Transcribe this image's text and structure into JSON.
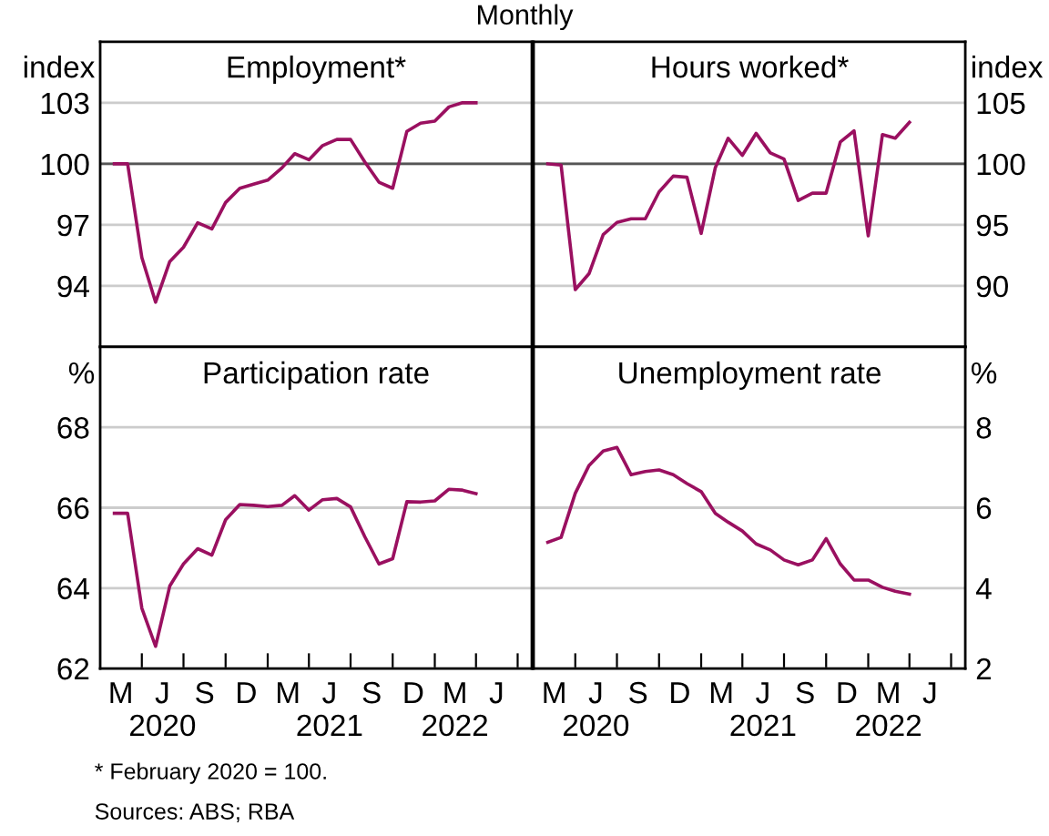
{
  "chart_data": [
    {
      "type": "line",
      "title": "Employment*",
      "subtitle": "Monthly",
      "ylabel": "index",
      "annotations": [
        "* February 2020 = 100.",
        "Sources: ABS; RBA"
      ],
      "x": [
        "2020-02",
        "2020-03",
        "2020-04",
        "2020-05",
        "2020-06",
        "2020-07",
        "2020-08",
        "2020-09",
        "2020-10",
        "2020-11",
        "2020-12",
        "2021-01",
        "2021-02",
        "2021-03",
        "2021-04",
        "2021-05",
        "2021-06",
        "2021-07",
        "2021-08",
        "2021-09",
        "2021-10",
        "2021-11",
        "2021-12",
        "2022-01",
        "2022-02",
        "2022-03",
        "2022-04"
      ],
      "series": [
        {
          "color": "#9a1060",
          "values": [
            100,
            100,
            95.4,
            93.2,
            95.2,
            95.9,
            97.1,
            96.8,
            98.1,
            98.8,
            99.0,
            99.2,
            99.8,
            100.5,
            100.2,
            100.9,
            101.2,
            101.2,
            100.1,
            99.1,
            98.8,
            101.6,
            102.0,
            102.1,
            102.8,
            103.0,
            103.0
          ]
        }
      ],
      "xlim": [
        "2020-01-01",
        "2022-08-01"
      ],
      "ylim": [
        91,
        106
      ],
      "yticks": [
        94,
        97,
        100,
        103
      ],
      "grid": "y",
      "tick_labels": "y",
      "ref_lines": [
        {
          "axis": "y",
          "value": 100,
          "color": "#555555"
        }
      ]
    },
    {
      "type": "line",
      "title": "Hours worked*",
      "ylabel": "index",
      "x": [
        "2020-02",
        "2020-03",
        "2020-04",
        "2020-05",
        "2020-06",
        "2020-07",
        "2020-08",
        "2020-09",
        "2020-10",
        "2020-11",
        "2020-12",
        "2021-01",
        "2021-02",
        "2021-03",
        "2021-04",
        "2021-05",
        "2021-06",
        "2021-07",
        "2021-08",
        "2021-09",
        "2021-10",
        "2021-11",
        "2021-12",
        "2022-01",
        "2022-02",
        "2022-03",
        "2022-04"
      ],
      "series": [
        {
          "color": "#9a1060",
          "values": [
            100,
            99.9,
            89.7,
            91.0,
            94.2,
            95.2,
            95.5,
            95.5,
            97.7,
            99.0,
            98.9,
            94.3,
            99.7,
            102.1,
            100.7,
            102.5,
            100.9,
            100.4,
            97.0,
            97.6,
            97.6,
            101.8,
            102.7,
            94.1,
            102.4,
            102.1,
            103.4
          ]
        }
      ],
      "xlim": [
        "2020-01-01",
        "2022-08-01"
      ],
      "ylim": [
        85,
        110
      ],
      "yticks": [
        90,
        95,
        100,
        105
      ],
      "grid": "y",
      "tick_labels": "y",
      "ref_lines": [
        {
          "axis": "y",
          "value": 100,
          "color": "#555555"
        }
      ]
    },
    {
      "type": "line",
      "title": "Participation rate",
      "ylabel": "%",
      "x": [
        "2020-02",
        "2020-03",
        "2020-04",
        "2020-05",
        "2020-06",
        "2020-07",
        "2020-08",
        "2020-09",
        "2020-10",
        "2020-11",
        "2020-12",
        "2021-01",
        "2021-02",
        "2021-03",
        "2021-04",
        "2021-05",
        "2021-06",
        "2021-07",
        "2021-08",
        "2021-09",
        "2021-10",
        "2021-11",
        "2021-12",
        "2022-01",
        "2022-02",
        "2022-03",
        "2022-04"
      ],
      "series": [
        {
          "color": "#9a1060",
          "values": [
            65.86,
            65.86,
            63.5,
            62.55,
            64.05,
            64.6,
            64.98,
            64.82,
            65.7,
            66.08,
            66.06,
            66.03,
            66.06,
            66.3,
            65.94,
            66.2,
            66.23,
            66.02,
            65.28,
            64.6,
            64.73,
            66.15,
            66.14,
            66.17,
            66.46,
            66.44,
            66.35
          ]
        }
      ],
      "xlim": [
        "2020-01-01",
        "2022-08-01"
      ],
      "ylim": [
        62,
        70
      ],
      "yticks": [
        62,
        64,
        66,
        68
      ],
      "grid": "y",
      "xticks": [
        {
          "value": "2020-04-01",
          "label": null
        },
        {
          "value": "2020-07-01",
          "label": null
        },
        {
          "value": "2020-10-01",
          "label": null
        },
        {
          "value": "2021-01-01",
          "label": null
        },
        {
          "value": "2021-04-01",
          "label": null
        },
        {
          "value": "2021-07-01",
          "label": null
        },
        {
          "value": "2021-10-01",
          "label": null
        },
        {
          "value": "2022-01-01",
          "label": null
        },
        {
          "value": "2022-04-01",
          "label": null
        },
        {
          "value": "2022-07-01",
          "label": null
        },
        {
          "value": "2020-02-15",
          "label": "M"
        },
        {
          "value": "2020-05-16",
          "label": "J\n2020"
        },
        {
          "value": "2020-08-16",
          "label": "S"
        },
        {
          "value": "2020-11-15",
          "label": "D"
        },
        {
          "value": "2021-02-14",
          "label": "M"
        },
        {
          "value": "2021-05-16",
          "label": "J\n2021"
        },
        {
          "value": "2021-08-16",
          "label": "S"
        },
        {
          "value": "2021-11-15",
          "label": "D"
        },
        {
          "value": "2022-02-14",
          "label": "M\n2022"
        },
        {
          "value": "2022-05-16",
          "label": "J"
        }
      ]
    },
    {
      "type": "line",
      "title": "Unemployment rate",
      "ylabel": "%",
      "x": [
        "2020-02",
        "2020-03",
        "2020-04",
        "2020-05",
        "2020-06",
        "2020-07",
        "2020-08",
        "2020-09",
        "2020-10",
        "2020-11",
        "2020-12",
        "2021-01",
        "2021-02",
        "2021-03",
        "2021-04",
        "2021-05",
        "2021-06",
        "2021-07",
        "2021-08",
        "2021-09",
        "2021-10",
        "2021-11",
        "2021-12",
        "2022-01",
        "2022-02",
        "2022-03",
        "2022-04"
      ],
      "series": [
        {
          "color": "#9a1060",
          "values": [
            5.14,
            5.26,
            6.36,
            7.05,
            7.41,
            7.5,
            6.82,
            6.9,
            6.94,
            6.82,
            6.6,
            6.4,
            5.86,
            5.64,
            5.42,
            5.1,
            4.95,
            4.7,
            4.58,
            4.7,
            5.23,
            4.6,
            4.2,
            4.2,
            4.02,
            3.92,
            3.85
          ]
        }
      ],
      "xlim": [
        "2020-01-01",
        "2022-08-01"
      ],
      "ylim": [
        2,
        10
      ],
      "yticks": [
        2,
        4,
        6,
        8
      ],
      "grid": "y",
      "xticks": [
        {
          "value": "2020-04-01",
          "label": null
        },
        {
          "value": "2020-07-01",
          "label": null
        },
        {
          "value": "2020-10-01",
          "label": null
        },
        {
          "value": "2021-01-01",
          "label": null
        },
        {
          "value": "2021-04-01",
          "label": null
        },
        {
          "value": "2021-07-01",
          "label": null
        },
        {
          "value": "2021-10-01",
          "label": null
        },
        {
          "value": "2022-01-01",
          "label": null
        },
        {
          "value": "2022-04-01",
          "label": null
        },
        {
          "value": "2022-07-01",
          "label": null
        },
        {
          "value": "2020-02-15",
          "label": "M"
        },
        {
          "value": "2020-05-16",
          "label": "J\n2020"
        },
        {
          "value": "2020-08-16",
          "label": "S"
        },
        {
          "value": "2020-11-15",
          "label": "D"
        },
        {
          "value": "2021-02-14",
          "label": "M"
        },
        {
          "value": "2021-05-16",
          "label": "J\n2021"
        },
        {
          "value": "2021-08-16",
          "label": "S"
        },
        {
          "value": "2021-11-15",
          "label": "D"
        },
        {
          "value": "2022-02-14",
          "label": "M\n2022"
        },
        {
          "value": "2022-05-16",
          "label": "J"
        }
      ]
    }
  ]
}
